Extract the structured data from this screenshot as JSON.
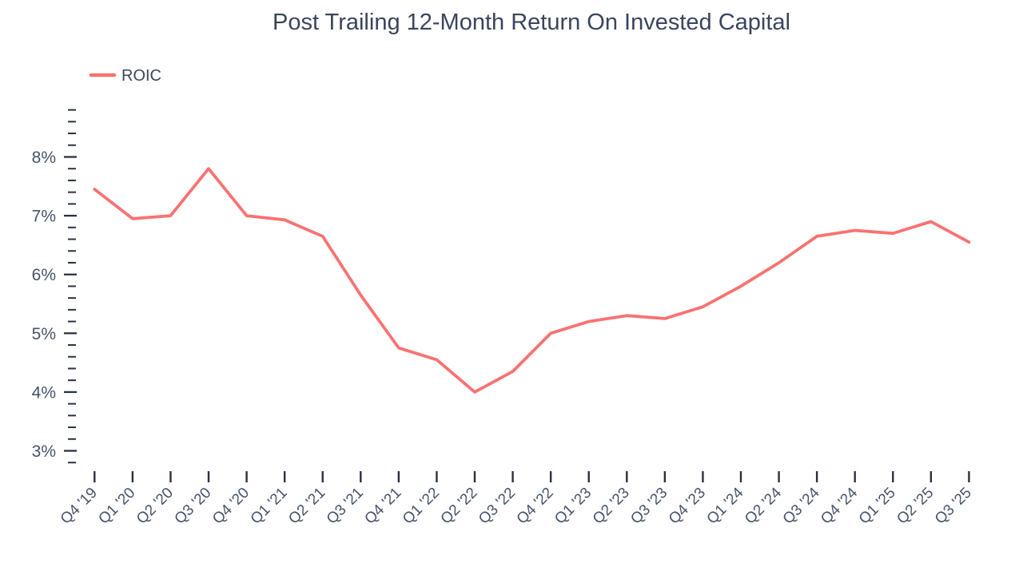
{
  "chart_data": {
    "type": "line",
    "title": "Post Trailing 12-Month Return On Invested Capital",
    "categories": [
      "Q4 '19",
      "Q1 '20",
      "Q2 '20",
      "Q3 '20",
      "Q4 '20",
      "Q1 '21",
      "Q2 '21",
      "Q3 '21",
      "Q4 '21",
      "Q1 '22",
      "Q2 '22",
      "Q3 '22",
      "Q4 '22",
      "Q1 '23",
      "Q2 '23",
      "Q3 '23",
      "Q4 '23",
      "Q1 '24",
      "Q2 '24",
      "Q3 '24",
      "Q4 '24",
      "Q1 '25",
      "Q2 '25",
      "Q3 '25"
    ],
    "series": [
      {
        "name": "ROIC",
        "color": "#F87272",
        "values": [
          7.45,
          6.95,
          7.0,
          7.8,
          7.0,
          6.93,
          6.65,
          5.65,
          4.75,
          4.55,
          4.0,
          4.35,
          5.0,
          5.2,
          5.3,
          5.25,
          5.45,
          5.8,
          6.2,
          6.65,
          6.75,
          6.7,
          6.9,
          6.55
        ]
      }
    ],
    "xlabel": "",
    "ylabel": "",
    "y_major_ticks": [
      3,
      4,
      5,
      6,
      7,
      8
    ],
    "y_tick_labels": [
      "3%",
      "4%",
      "5%",
      "6%",
      "7%",
      "8%"
    ],
    "y_minor_step": 0.2,
    "ylim": [
      2.8,
      8.8
    ],
    "grid": false,
    "legend_position": "top-left"
  },
  "colors": {
    "line": "#F87272",
    "title_text": "#3A455C",
    "axis_text": "#47536B",
    "tick": "#2A3240",
    "background": "#FFFFFF"
  }
}
